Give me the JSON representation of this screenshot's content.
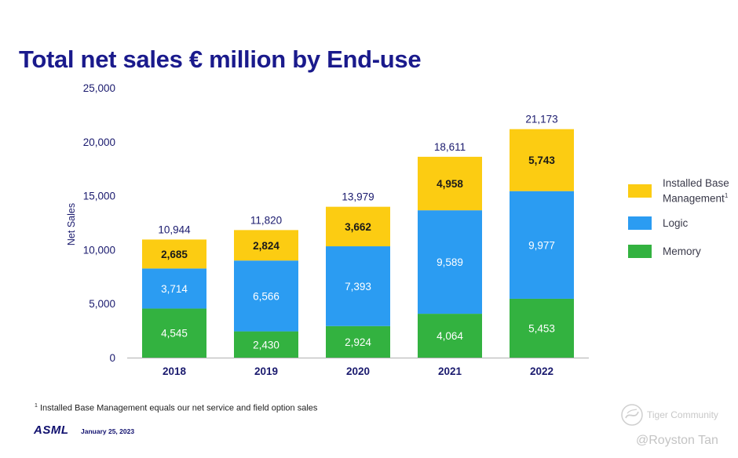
{
  "title": "Total net sales € million by End-use",
  "chart_data": {
    "type": "bar",
    "stacked": true,
    "ylabel": "Net Sales",
    "xlabel": "",
    "ylim": [
      0,
      25000
    ],
    "yticks": [
      "0",
      "5,000",
      "10,000",
      "15,000",
      "20,000",
      "25,000"
    ],
    "ytick_values": [
      0,
      5000,
      10000,
      15000,
      20000,
      25000
    ],
    "categories": [
      "2018",
      "2019",
      "2020",
      "2021",
      "2022"
    ],
    "series": [
      {
        "name": "Memory",
        "values": [
          4545,
          2430,
          2924,
          4064,
          5453
        ],
        "labels": [
          "4,545",
          "2,430",
          "2,924",
          "4,064",
          "5,453"
        ],
        "color": "#33b240",
        "label_color": "#ffffff"
      },
      {
        "name": "Logic",
        "values": [
          3714,
          6566,
          7393,
          9589,
          9977
        ],
        "labels": [
          "3,714",
          "6,566",
          "7,393",
          "9,589",
          "9,977"
        ],
        "color": "#2b9cf2",
        "label_color": "#ffffff"
      },
      {
        "name": "Installed Base Management",
        "values": [
          2685,
          2824,
          3662,
          4958,
          5743
        ],
        "labels": [
          "2,685",
          "2,824",
          "3,662",
          "4,958",
          "5,743"
        ],
        "color": "#fccc12",
        "label_color": "#1a1a1a"
      }
    ],
    "totals": [
      10944,
      11820,
      13979,
      18611,
      21173
    ],
    "total_labels": [
      "10,944",
      "11,820",
      "13,979",
      "18,611",
      "21,173"
    ],
    "grid": false,
    "legend_position": "right"
  },
  "legend": [
    {
      "name": "Installed Base",
      "name2": "Management",
      "sup": "1",
      "color": "#fccc12"
    },
    {
      "name": "Logic",
      "color": "#2b9cf2"
    },
    {
      "name": "Memory",
      "color": "#33b240"
    }
  ],
  "footnote": {
    "sup": "1",
    "text": " Installed Base Management equals our net service and field option sales"
  },
  "brand": {
    "logo": "ASML",
    "date": "January 25, 2023"
  },
  "watermark": {
    "community": "Tiger Community",
    "author": "@Royston Tan"
  },
  "colors": {
    "title": "#1a1a8c",
    "axis_text": "#1a1a6e",
    "axis_line": "#b0b0b0"
  }
}
